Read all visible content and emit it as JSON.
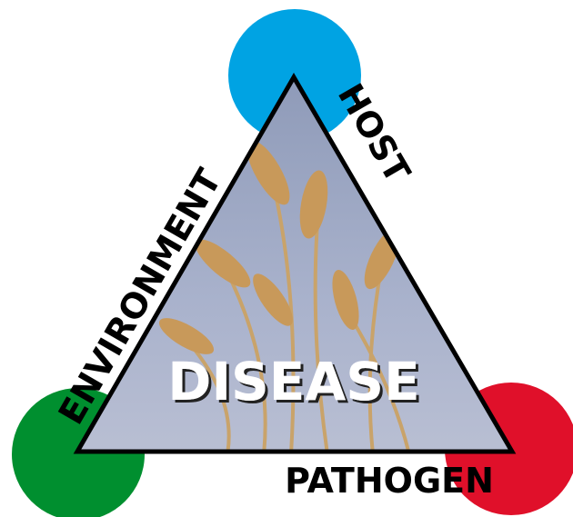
{
  "diagram": {
    "center": {
      "label": "DISEASE"
    },
    "sides": {
      "host": "HOST",
      "environment": "ENVIRONMENT",
      "pathogen": "PATHOGEN"
    }
  }
}
